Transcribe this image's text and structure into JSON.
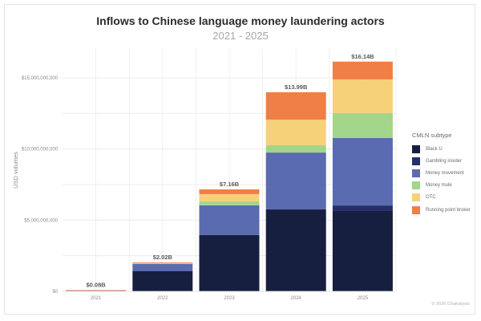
{
  "title": "Inflows to Chinese language money laundering actors",
  "subtitle": "2021 - 2025",
  "footer": "© 2026 Chainalysis",
  "legend": {
    "title": "CMLN subtype",
    "items": [
      {
        "label": "Black U",
        "color": "#161f3f"
      },
      {
        "label": "Gambling insider",
        "color": "#273066"
      },
      {
        "label": "Money movement",
        "color": "#5a6bb0"
      },
      {
        "label": "Money mule",
        "color": "#a3d58a"
      },
      {
        "label": "OTC",
        "color": "#f7d07a"
      },
      {
        "label": "Running point broker",
        "color": "#ef7f45"
      }
    ]
  },
  "chart_data": {
    "type": "bar",
    "stacked": true,
    "title": "Inflows to Chinese language money laundering actors",
    "subtitle": "2021 - 2025",
    "xlabel": "",
    "ylabel": "USD volumes",
    "ylim": [
      0,
      16500000000
    ],
    "yticks": [
      0,
      5000000000,
      10000000000,
      15000000000
    ],
    "ytick_labels": [
      "$0",
      "$5,000,000,000",
      "$10,000,000,000",
      "$15,000,000,000"
    ],
    "grid": true,
    "legend_position": "right",
    "legend_title": "CMLN subtype",
    "categories": [
      "2021",
      "2022",
      "2023",
      "2024",
      "2025"
    ],
    "totals": [
      0.08,
      2.02,
      7.16,
      13.99,
      16.14
    ],
    "total_labels": [
      "$0.08B",
      "$2.02B",
      "$7.16B",
      "$13.99B",
      "$16.14B"
    ],
    "units": "USD billions",
    "series": [
      {
        "name": "Black U",
        "color": "#161f3f",
        "values": [
          0.0,
          1.41,
          3.95,
          5.75,
          5.64
        ]
      },
      {
        "name": "Gambling insider",
        "color": "#273066",
        "values": [
          0.0,
          0.0,
          0.0,
          0.0,
          0.39
        ]
      },
      {
        "name": "Money movement",
        "color": "#5a6bb0",
        "values": [
          0.07,
          0.53,
          2.09,
          4.0,
          4.74
        ]
      },
      {
        "name": "Money mule",
        "color": "#a3d58a",
        "values": [
          0.0,
          0.02,
          0.28,
          0.51,
          1.75
        ]
      },
      {
        "name": "OTC",
        "color": "#f7d07a",
        "values": [
          0.0,
          0.05,
          0.51,
          1.8,
          2.37
        ]
      },
      {
        "name": "Running point broker",
        "color": "#ef7f45",
        "values": [
          0.01,
          0.01,
          0.33,
          1.93,
          1.25
        ]
      }
    ]
  }
}
